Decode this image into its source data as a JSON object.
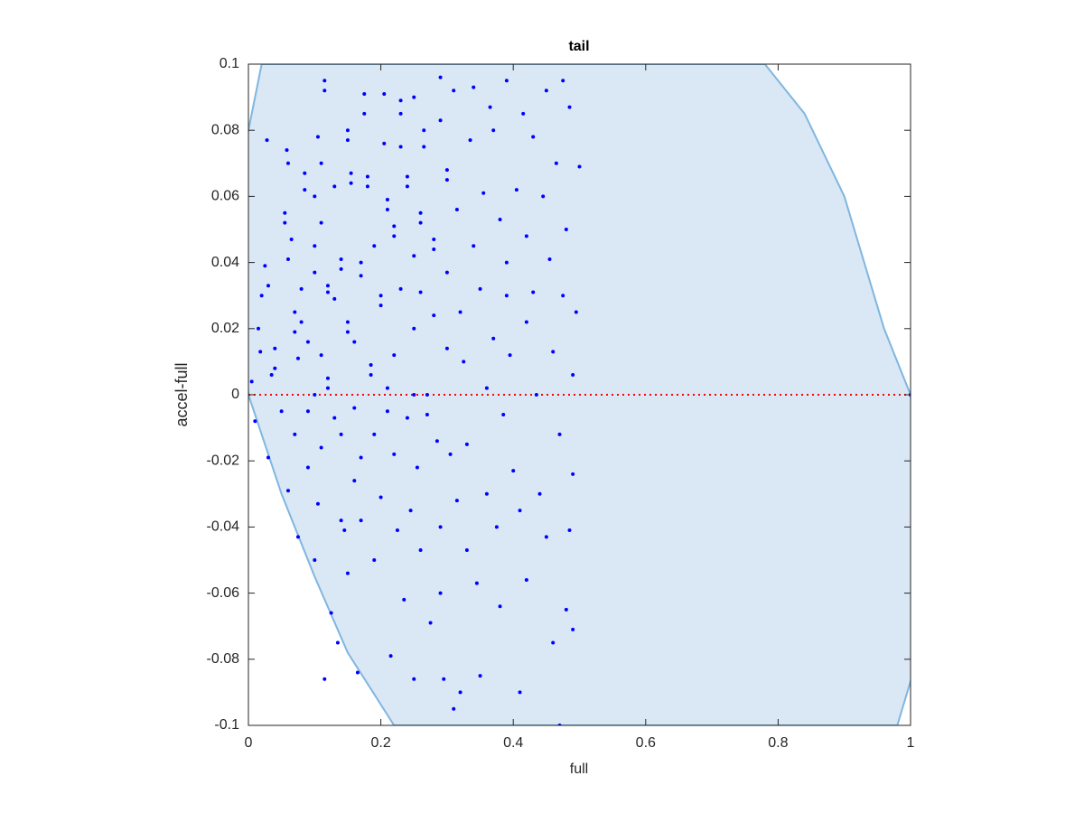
{
  "chart_data": {
    "type": "scatter",
    "title": "tail",
    "xlabel": "full",
    "ylabel": "accel-full",
    "xlim": [
      0,
      1
    ],
    "ylim": [
      -0.1,
      0.1
    ],
    "xticks": [
      0,
      0.2,
      0.4,
      0.6,
      0.8,
      1
    ],
    "yticks": [
      -0.1,
      -0.08,
      -0.06,
      -0.04,
      -0.02,
      0,
      0.02,
      0.04,
      0.06,
      0.08,
      0.1
    ],
    "region": {
      "color": "#d9e8f4",
      "edge_color": "#80b6e0",
      "x": [
        0.02,
        -0.01,
        -0.01,
        0,
        0.05,
        0.1,
        0.15,
        0.22,
        0.98,
        1.01,
        1.01,
        1,
        0.96,
        0.9,
        0.84,
        0.78
      ],
      "y": [
        0.1,
        0.07,
        0.03,
        0,
        -0.03,
        -0.055,
        -0.078,
        -0.1,
        -0.1,
        -0.08,
        -0.02,
        0,
        0.02,
        0.06,
        0.085,
        0.1
      ]
    },
    "reference_line": {
      "y": 0,
      "color": "#ff0000"
    },
    "series": [
      {
        "color": "#0000ff",
        "x": [
          0.005,
          0.01,
          0.015,
          0.018,
          0.02,
          0.025,
          0.028,
          0.03,
          0.035,
          0.04,
          0.04,
          0.03,
          0.05,
          0.055,
          0.055,
          0.058,
          0.06,
          0.06,
          0.065,
          0.06,
          0.07,
          0.07,
          0.075,
          0.07,
          0.075,
          0.08,
          0.08,
          0.085,
          0.085,
          0.09,
          0.09,
          0.09,
          0.1,
          0.1,
          0.1,
          0.1,
          0.1,
          0.105,
          0.105,
          0.11,
          0.11,
          0.11,
          0.11,
          0.115,
          0.115,
          0.115,
          0.12,
          0.12,
          0.12,
          0.12,
          0.125,
          0.13,
          0.13,
          0.13,
          0.135,
          0.14,
          0.14,
          0.14,
          0.14,
          0.145,
          0.15,
          0.15,
          0.15,
          0.15,
          0.15,
          0.155,
          0.155,
          0.16,
          0.16,
          0.16,
          0.165,
          0.17,
          0.17,
          0.17,
          0.17,
          0.175,
          0.175,
          0.18,
          0.18,
          0.185,
          0.185,
          0.19,
          0.19,
          0.19,
          0.2,
          0.2,
          0.2,
          0.205,
          0.205,
          0.21,
          0.21,
          0.21,
          0.21,
          0.215,
          0.22,
          0.22,
          0.22,
          0.22,
          0.225,
          0.23,
          0.23,
          0.23,
          0.23,
          0.235,
          0.24,
          0.24,
          0.24,
          0.245,
          0.25,
          0.25,
          0.25,
          0.25,
          0.25,
          0.255,
          0.26,
          0.26,
          0.26,
          0.26,
          0.265,
          0.265,
          0.27,
          0.27,
          0.275,
          0.28,
          0.28,
          0.28,
          0.285,
          0.29,
          0.29,
          0.29,
          0.29,
          0.295,
          0.3,
          0.3,
          0.3,
          0.3,
          0.305,
          0.31,
          0.31,
          0.315,
          0.315,
          0.32,
          0.32,
          0.325,
          0.33,
          0.33,
          0.335,
          0.34,
          0.34,
          0.345,
          0.35,
          0.35,
          0.355,
          0.36,
          0.36,
          0.365,
          0.37,
          0.37,
          0.375,
          0.38,
          0.38,
          0.385,
          0.39,
          0.39,
          0.39,
          0.395,
          0.4,
          0.405,
          0.41,
          0.41,
          0.415,
          0.42,
          0.42,
          0.42,
          0.43,
          0.43,
          0.435,
          0.44,
          0.445,
          0.45,
          0.45,
          0.455,
          0.46,
          0.46,
          0.465,
          0.47,
          0.47,
          0.475,
          0.475,
          0.48,
          0.48,
          0.485,
          0.485,
          0.49,
          0.49,
          0.49,
          0.495,
          0.5,
          1
        ],
        "y": [
          0.004,
          -0.008,
          0.02,
          0.013,
          0.03,
          0.039,
          0.077,
          0.033,
          0.006,
          0.008,
          0.014,
          -0.019,
          -0.005,
          0.055,
          0.052,
          0.074,
          0.07,
          -0.029,
          0.047,
          0.041,
          0.025,
          0.019,
          0.011,
          -0.012,
          -0.043,
          0.032,
          0.022,
          0.067,
          0.062,
          0.016,
          -0.005,
          -0.022,
          -0.05,
          0.06,
          0.045,
          0.037,
          0,
          -0.033,
          0.078,
          0.07,
          0.052,
          0.012,
          -0.016,
          0.095,
          0.092,
          -0.086,
          0.033,
          0.031,
          0.005,
          0.002,
          -0.066,
          0.029,
          0.063,
          -0.007,
          -0.075,
          0.041,
          0.038,
          -0.012,
          -0.038,
          -0.041,
          0.08,
          0.077,
          0.022,
          0.019,
          -0.054,
          0.067,
          0.064,
          0.016,
          -0.004,
          -0.026,
          -0.084,
          0.036,
          0.04,
          -0.019,
          -0.038,
          0.091,
          0.085,
          0.066,
          0.063,
          0.006,
          0.009,
          -0.05,
          0.045,
          -0.012,
          0.027,
          0.03,
          -0.031,
          0.091,
          0.076,
          0.059,
          0.056,
          0.002,
          -0.005,
          -0.079,
          0.048,
          0.051,
          0.012,
          -0.018,
          -0.041,
          0.089,
          0.085,
          0.075,
          0.032,
          -0.062,
          -0.007,
          0.066,
          0.063,
          -0.035,
          0.09,
          0.042,
          0.02,
          0,
          -0.086,
          -0.022,
          0.055,
          0.052,
          0.031,
          -0.047,
          0.075,
          0.08,
          0,
          -0.006,
          -0.069,
          0.044,
          0.047,
          0.024,
          -0.014,
          0.096,
          0.083,
          -0.04,
          -0.06,
          -0.086,
          0.065,
          0.068,
          0.037,
          0.014,
          -0.018,
          0.092,
          -0.095,
          0.056,
          -0.032,
          0.025,
          -0.09,
          0.01,
          -0.015,
          -0.047,
          0.077,
          0.093,
          0.045,
          -0.057,
          0.032,
          -0.085,
          0.061,
          -0.03,
          0.002,
          0.087,
          0.08,
          0.017,
          -0.04,
          0.053,
          -0.064,
          -0.006,
          0.095,
          0.04,
          0.03,
          0.012,
          -0.023,
          0.062,
          -0.035,
          -0.09,
          0.085,
          0.048,
          0.022,
          -0.056,
          0.078,
          0.031,
          0,
          -0.03,
          0.06,
          0.092,
          -0.043,
          0.041,
          -0.075,
          0.013,
          0.07,
          -0.1,
          -0.012,
          0.095,
          0.03,
          0.05,
          -0.065,
          0.087,
          -0.041,
          0.006,
          -0.024,
          -0.071,
          0.025,
          0.069,
          0
        ]
      }
    ]
  }
}
